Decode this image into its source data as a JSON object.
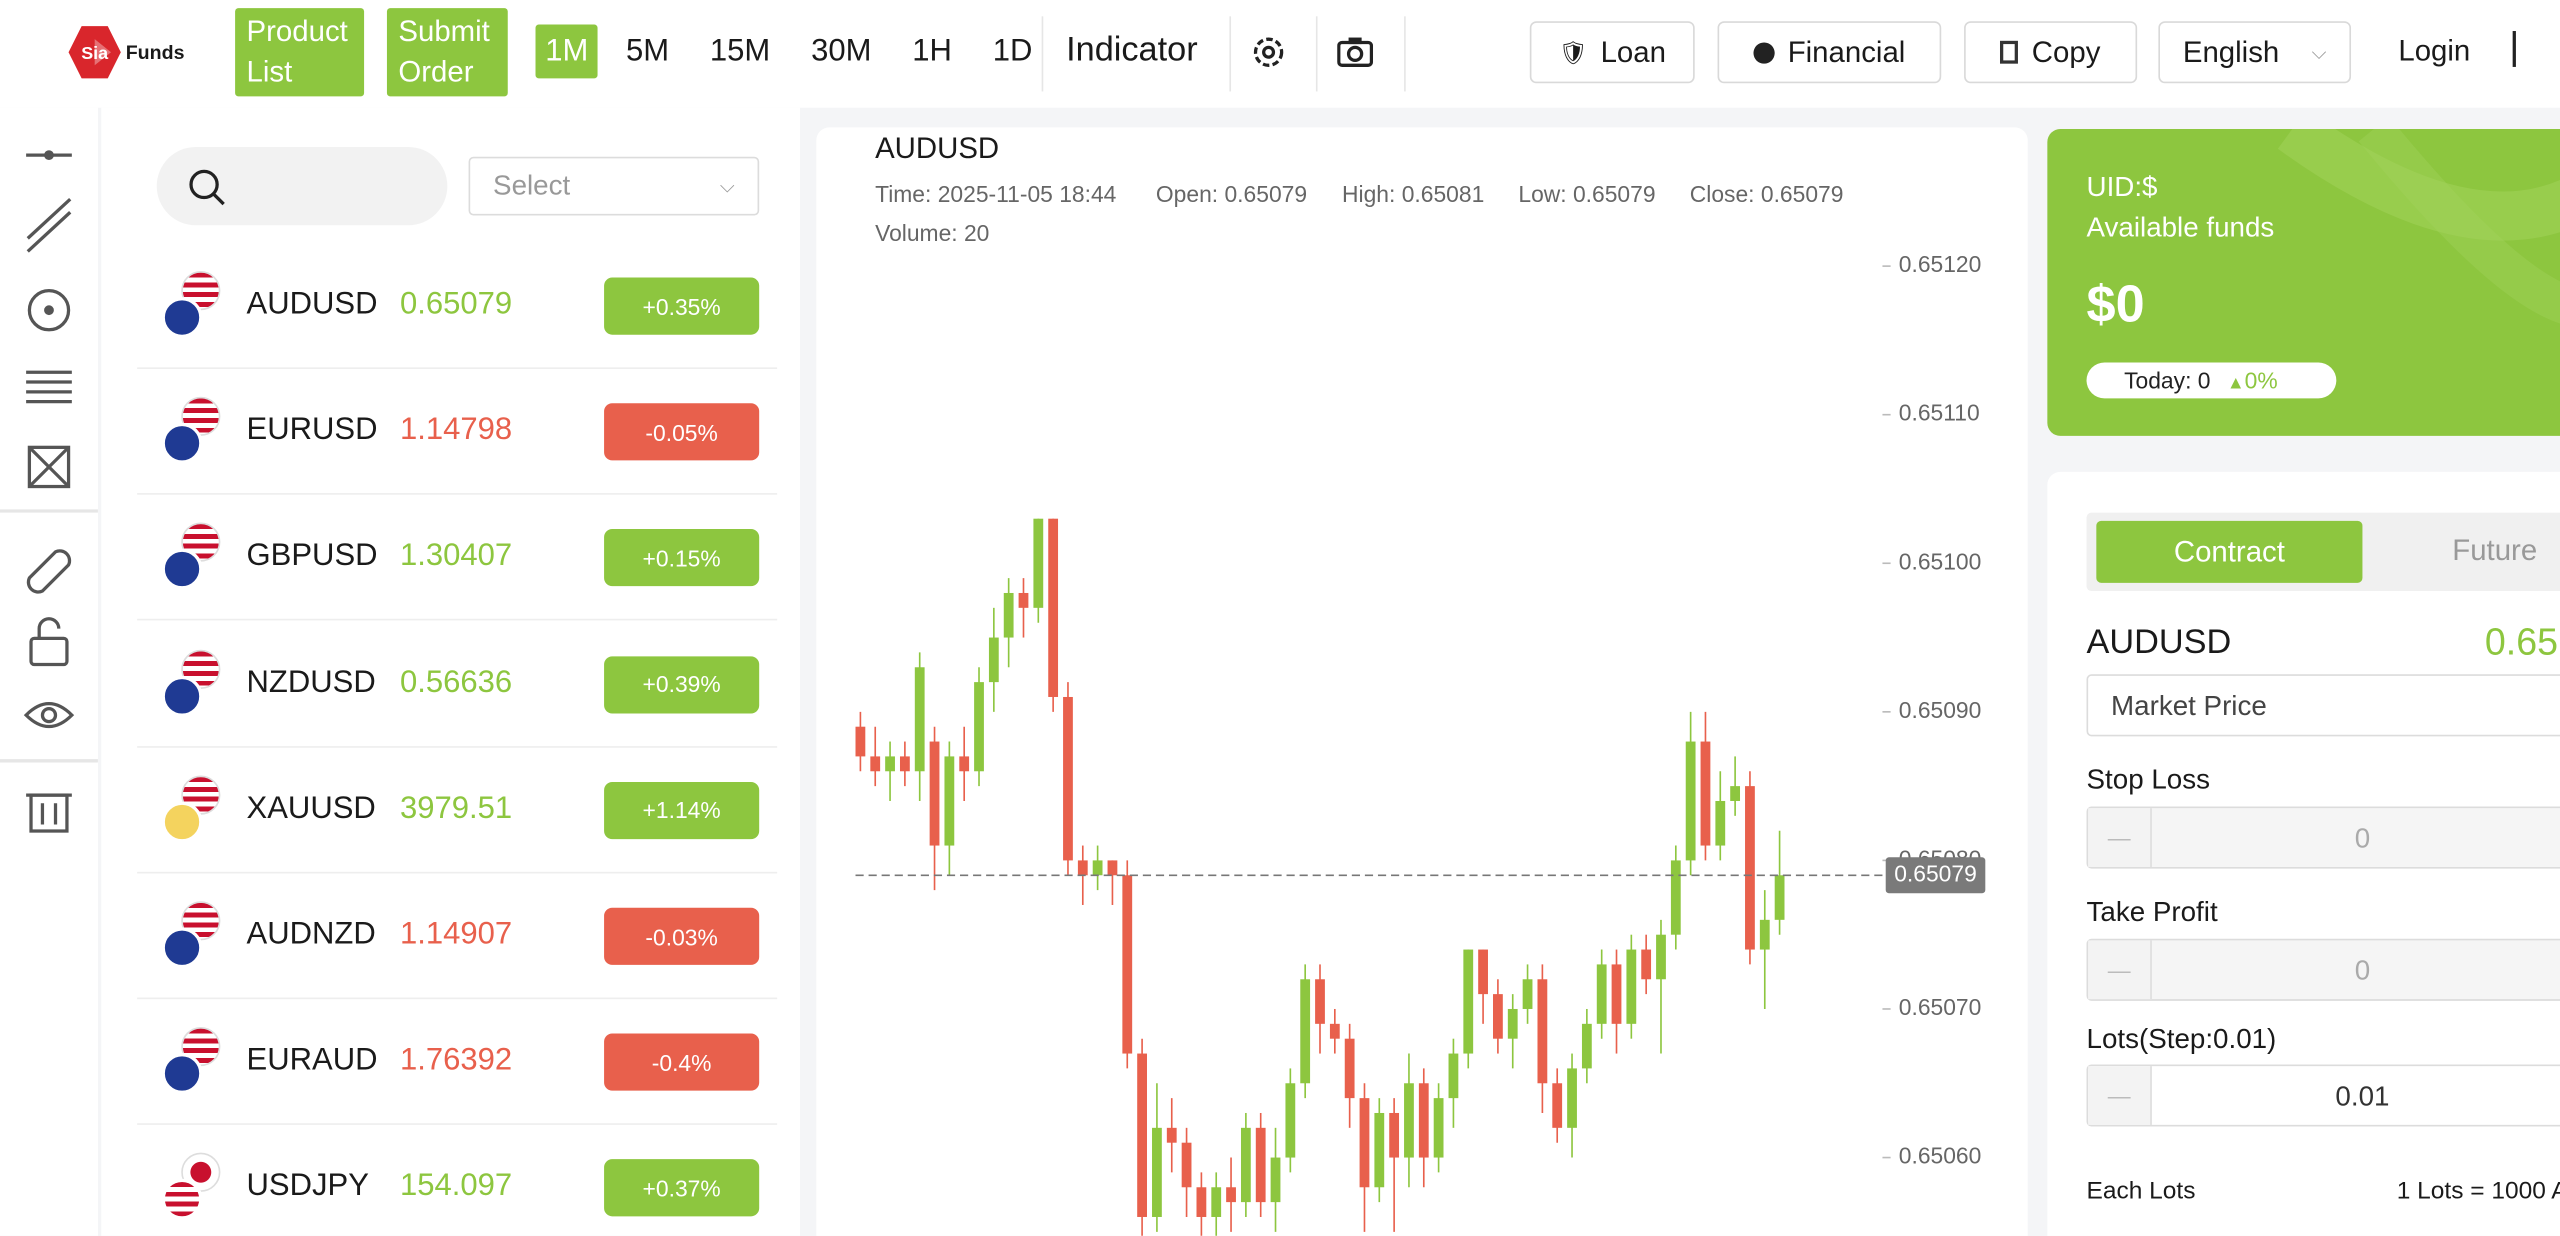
{
  "header": {
    "logo": "Sia",
    "brand": "Funds",
    "nav": [
      "Product List",
      "Submit Order"
    ],
    "timeframes": [
      "1M",
      "5M",
      "15M",
      "30M",
      "1H",
      "1D"
    ],
    "active_timeframe": "1M",
    "indicator": "Indicator",
    "buttons": [
      "Loan",
      "Financial",
      "Copy"
    ],
    "language": "English",
    "login": "Login"
  },
  "watchlist": {
    "select": "Select",
    "items": [
      {
        "name": "AUDUSD",
        "price": "0.65079",
        "change": "+0.35%"
      },
      {
        "name": "EURUSD",
        "price": "1.14798",
        "change": "-0.05%"
      },
      {
        "name": "GBPUSD",
        "price": "1.30407",
        "change": "+0.15%"
      },
      {
        "name": "NZDUSD",
        "price": "0.56636",
        "change": "+0.39%"
      },
      {
        "name": "XAUUSD",
        "price": "3979.51",
        "change": "+1.14%"
      },
      {
        "name": "AUDNZD",
        "price": "1.14907",
        "change": "-0.03%"
      },
      {
        "name": "EURAUD",
        "price": "1.76392",
        "change": "-0.4%"
      },
      {
        "name": "USDJPY",
        "price": "154.097",
        "change": "+0.37%"
      }
    ]
  },
  "chart_data": {
    "type": "candlestick",
    "title": "AUDUSD",
    "info": [
      "Time: 2025-11-05 18:44",
      "Open: 0.65079",
      "High: 0.65081",
      "Low: 0.65079",
      "Close: 0.65079",
      "Volume: 20"
    ],
    "up_color": "#8dc63f",
    "down_color": "#e8604c",
    "open": [
      0.65089,
      0.65087,
      0.65086,
      0.65087,
      0.65086,
      0.65088,
      0.65081,
      0.65087,
      0.65086,
      0.65092,
      0.65095,
      0.65098,
      0.65097,
      0.65103,
      0.65091,
      0.6508,
      0.65079,
      0.6508,
      0.65079,
      0.65067,
      0.65056,
      0.65062,
      0.65061,
      0.65058,
      0.65056,
      0.65058,
      0.65057,
      0.65062,
      0.65057,
      0.6506,
      0.65065,
      0.65072,
      0.65069,
      0.65068,
      0.65064,
      0.65058,
      0.65063,
      0.6506,
      0.65065,
      0.6506,
      0.65064,
      0.65067,
      0.65074,
      0.65071,
      0.65068,
      0.6507,
      0.65072,
      0.65065,
      0.65062,
      0.65066,
      0.65069,
      0.65073,
      0.65069,
      0.65074,
      0.65072,
      0.65075,
      0.6508,
      0.65088,
      0.65081,
      0.65084,
      0.65085,
      0.65074,
      0.65076
    ],
    "high": [
      0.6509,
      0.65089,
      0.65088,
      0.65088,
      0.65094,
      0.65089,
      0.65088,
      0.65089,
      0.65093,
      0.65097,
      0.65099,
      0.65099,
      0.65103,
      0.65103,
      0.65092,
      0.65081,
      0.65081,
      0.6508,
      0.6508,
      0.65068,
      0.65065,
      0.65064,
      0.65062,
      0.65059,
      0.65059,
      0.6506,
      0.65063,
      0.65063,
      0.65062,
      0.65066,
      0.65073,
      0.65073,
      0.6507,
      0.65069,
      0.65065,
      0.65064,
      0.65064,
      0.65067,
      0.65066,
      0.65065,
      0.65068,
      0.65074,
      0.65074,
      0.65072,
      0.65071,
      0.65073,
      0.65073,
      0.65066,
      0.65067,
      0.6507,
      0.65074,
      0.65074,
      0.65075,
      0.65075,
      0.65076,
      0.65081,
      0.6509,
      0.6509,
      0.65086,
      0.65087,
      0.65086,
      0.65078,
      0.65082
    ],
    "low": [
      0.65086,
      0.65085,
      0.65084,
      0.65085,
      0.65084,
      0.65078,
      0.65079,
      0.65084,
      0.65085,
      0.6509,
      0.65093,
      0.65095,
      0.65096,
      0.6509,
      0.65079,
      0.65077,
      0.65078,
      0.65077,
      0.65066,
      0.65054,
      0.65055,
      0.65059,
      0.65056,
      0.65054,
      0.65054,
      0.65055,
      0.65056,
      0.65056,
      0.65055,
      0.65059,
      0.65064,
      0.65067,
      0.65067,
      0.65062,
      0.65055,
      0.65057,
      0.65055,
      0.65058,
      0.65058,
      0.65059,
      0.65062,
      0.65066,
      0.65069,
      0.65067,
      0.65066,
      0.65069,
      0.65063,
      0.65061,
      0.6506,
      0.65065,
      0.65068,
      0.65067,
      0.65068,
      0.65071,
      0.65067,
      0.65074,
      0.65079,
      0.6508,
      0.6508,
      0.65083,
      0.65073,
      0.6507,
      0.65075
    ],
    "close": [
      0.65087,
      0.65086,
      0.65087,
      0.65086,
      0.65093,
      0.65081,
      0.65087,
      0.65086,
      0.65092,
      0.65095,
      0.65098,
      0.65097,
      0.65103,
      0.65091,
      0.6508,
      0.65079,
      0.6508,
      0.65079,
      0.65067,
      0.65056,
      0.65062,
      0.65061,
      0.65058,
      0.65056,
      0.65058,
      0.65057,
      0.65062,
      0.65057,
      0.6506,
      0.65065,
      0.65072,
      0.65069,
      0.65068,
      0.65064,
      0.65058,
      0.65063,
      0.6506,
      0.65065,
      0.6506,
      0.65064,
      0.65067,
      0.65074,
      0.65071,
      0.65068,
      0.6507,
      0.65072,
      0.65065,
      0.65062,
      0.65066,
      0.65069,
      0.65073,
      0.65069,
      0.65074,
      0.65072,
      0.65075,
      0.6508,
      0.65088,
      0.65081,
      0.65084,
      0.65085,
      0.65074,
      0.65076,
      0.65079
    ],
    "last_price": 0.65079,
    "ylim": [
      0.65055,
      0.65121
    ],
    "yticks": [
      {
        "value": 0.6506,
        "label": "0.65060"
      },
      {
        "value": 0.6507,
        "label": "0.65070"
      },
      {
        "value": 0.6508,
        "label": "0.65080"
      },
      {
        "value": 0.6509,
        "label": "0.65090"
      },
      {
        "value": 0.651,
        "label": "0.65100"
      },
      {
        "value": 0.6511,
        "label": "0.65110"
      },
      {
        "value": 0.6512,
        "label": "0.65120"
      }
    ]
  },
  "account": {
    "uid": "UID:$",
    "label": "Available funds",
    "balance": "$0",
    "today": "Today: 0",
    "today_change": "0%"
  },
  "trade": {
    "tabs": [
      "Contract",
      "Future"
    ],
    "symbol": "AUDUSD",
    "price": "0.65",
    "order_type": "Market Price",
    "stop_loss": {
      "label": "Stop Loss",
      "value": "0"
    },
    "take_profit": {
      "label": "Take Profit",
      "value": "0"
    },
    "lots": {
      "label": "Lots(Step:0.01)",
      "value": "0.01"
    },
    "each_lots": {
      "label": "Each Lots",
      "value": "1 Lots = 1000 A"
    }
  }
}
